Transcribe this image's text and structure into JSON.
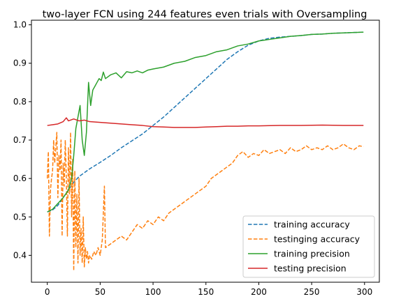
{
  "chart_data": {
    "type": "line",
    "title": "two-layer FCN using 244 features even trials with Oversampling",
    "xlabel": "",
    "ylabel": "",
    "xlim": [
      -15,
      314
    ],
    "ylim": [
      0.33,
      1.012
    ],
    "x_ticks": [
      0,
      50,
      100,
      150,
      200,
      250,
      300
    ],
    "y_ticks": [
      0.4,
      0.5,
      0.6,
      0.7,
      0.8,
      0.9,
      1.0
    ],
    "y_tick_labels": [
      "0.4",
      "0.5",
      "0.6",
      "0.7",
      "0.8",
      "0.9",
      "1.0"
    ],
    "grid": false,
    "legend_position": "lower-right",
    "series": [
      {
        "name": "training accuracy",
        "color": "#1f77b4",
        "dash": "dashed",
        "points": [
          [
            0,
            0.513
          ],
          [
            5,
            0.518
          ],
          [
            10,
            0.53
          ],
          [
            15,
            0.55
          ],
          [
            20,
            0.57
          ],
          [
            25,
            0.59
          ],
          [
            30,
            0.605
          ],
          [
            40,
            0.625
          ],
          [
            50,
            0.642
          ],
          [
            60,
            0.66
          ],
          [
            70,
            0.68
          ],
          [
            80,
            0.698
          ],
          [
            90,
            0.716
          ],
          [
            100,
            0.738
          ],
          [
            110,
            0.76
          ],
          [
            120,
            0.785
          ],
          [
            130,
            0.81
          ],
          [
            140,
            0.835
          ],
          [
            150,
            0.86
          ],
          [
            160,
            0.885
          ],
          [
            170,
            0.91
          ],
          [
            180,
            0.93
          ],
          [
            190,
            0.947
          ],
          [
            200,
            0.958
          ],
          [
            210,
            0.965
          ],
          [
            220,
            0.968
          ],
          [
            230,
            0.97
          ],
          [
            240,
            0.972
          ],
          [
            250,
            0.975
          ],
          [
            260,
            0.976
          ],
          [
            270,
            0.978
          ],
          [
            280,
            0.979
          ],
          [
            290,
            0.98
          ],
          [
            299,
            0.981
          ]
        ]
      },
      {
        "name": "testinging accuracy",
        "color": "#ff7f0e",
        "dash": "dashed",
        "points": [
          [
            0,
            0.6
          ],
          [
            1,
            0.67
          ],
          [
            2,
            0.45
          ],
          [
            3,
            0.57
          ],
          [
            4,
            0.6
          ],
          [
            5,
            0.62
          ],
          [
            6,
            0.7
          ],
          [
            7,
            0.64
          ],
          [
            8,
            0.68
          ],
          [
            9,
            0.72
          ],
          [
            10,
            0.55
          ],
          [
            11,
            0.66
          ],
          [
            12,
            0.62
          ],
          [
            13,
            0.7
          ],
          [
            14,
            0.45
          ],
          [
            15,
            0.64
          ],
          [
            16,
            0.58
          ],
          [
            17,
            0.7
          ],
          [
            18,
            0.6
          ],
          [
            19,
            0.45
          ],
          [
            20,
            0.68
          ],
          [
            21,
            0.56
          ],
          [
            22,
            0.72
          ],
          [
            23,
            0.5
          ],
          [
            24,
            0.65
          ],
          [
            25,
            0.36
          ],
          [
            26,
            0.62
          ],
          [
            27,
            0.42
          ],
          [
            28,
            0.56
          ],
          [
            29,
            0.38
          ],
          [
            30,
            0.6
          ],
          [
            31,
            0.4
          ],
          [
            32,
            0.47
          ],
          [
            33,
            0.38
          ],
          [
            34,
            0.5
          ],
          [
            35,
            0.37
          ],
          [
            36,
            0.42
          ],
          [
            37,
            0.39
          ],
          [
            38,
            0.41
          ],
          [
            39,
            0.38
          ],
          [
            40,
            0.4
          ],
          [
            42,
            0.39
          ],
          [
            44,
            0.41
          ],
          [
            46,
            0.4
          ],
          [
            48,
            0.42
          ],
          [
            50,
            0.4
          ],
          [
            52,
            0.44
          ],
          [
            54,
            0.58
          ],
          [
            55,
            0.42
          ],
          [
            60,
            0.43
          ],
          [
            65,
            0.44
          ],
          [
            70,
            0.45
          ],
          [
            75,
            0.44
          ],
          [
            80,
            0.46
          ],
          [
            85,
            0.48
          ],
          [
            90,
            0.47
          ],
          [
            95,
            0.49
          ],
          [
            100,
            0.48
          ],
          [
            105,
            0.5
          ],
          [
            110,
            0.49
          ],
          [
            115,
            0.51
          ],
          [
            120,
            0.52
          ],
          [
            125,
            0.53
          ],
          [
            130,
            0.54
          ],
          [
            135,
            0.55
          ],
          [
            140,
            0.56
          ],
          [
            145,
            0.57
          ],
          [
            150,
            0.58
          ],
          [
            155,
            0.6
          ],
          [
            160,
            0.61
          ],
          [
            165,
            0.62
          ],
          [
            170,
            0.63
          ],
          [
            175,
            0.64
          ],
          [
            180,
            0.66
          ],
          [
            185,
            0.67
          ],
          [
            190,
            0.655
          ],
          [
            195,
            0.665
          ],
          [
            200,
            0.66
          ],
          [
            205,
            0.675
          ],
          [
            210,
            0.665
          ],
          [
            215,
            0.67
          ],
          [
            220,
            0.675
          ],
          [
            225,
            0.665
          ],
          [
            230,
            0.68
          ],
          [
            235,
            0.67
          ],
          [
            240,
            0.675
          ],
          [
            245,
            0.685
          ],
          [
            250,
            0.675
          ],
          [
            255,
            0.68
          ],
          [
            260,
            0.675
          ],
          [
            265,
            0.685
          ],
          [
            270,
            0.675
          ],
          [
            275,
            0.68
          ],
          [
            280,
            0.69
          ],
          [
            285,
            0.68
          ],
          [
            290,
            0.675
          ],
          [
            295,
            0.685
          ],
          [
            299,
            0.683
          ]
        ]
      },
      {
        "name": "training precision",
        "color": "#2ca02c",
        "dash": "solid",
        "points": [
          [
            0,
            0.513
          ],
          [
            5,
            0.52
          ],
          [
            10,
            0.535
          ],
          [
            15,
            0.55
          ],
          [
            20,
            0.57
          ],
          [
            23,
            0.6
          ],
          [
            25,
            0.66
          ],
          [
            27,
            0.73
          ],
          [
            29,
            0.76
          ],
          [
            31,
            0.79
          ],
          [
            33,
            0.7
          ],
          [
            35,
            0.66
          ],
          [
            37,
            0.72
          ],
          [
            39,
            0.85
          ],
          [
            41,
            0.79
          ],
          [
            43,
            0.83
          ],
          [
            45,
            0.84
          ],
          [
            47,
            0.85
          ],
          [
            49,
            0.86
          ],
          [
            51,
            0.855
          ],
          [
            53,
            0.877
          ],
          [
            55,
            0.86
          ],
          [
            60,
            0.87
          ],
          [
            65,
            0.875
          ],
          [
            70,
            0.862
          ],
          [
            75,
            0.878
          ],
          [
            80,
            0.875
          ],
          [
            85,
            0.88
          ],
          [
            90,
            0.875
          ],
          [
            95,
            0.882
          ],
          [
            100,
            0.885
          ],
          [
            110,
            0.89
          ],
          [
            120,
            0.9
          ],
          [
            130,
            0.905
          ],
          [
            140,
            0.915
          ],
          [
            150,
            0.92
          ],
          [
            160,
            0.93
          ],
          [
            170,
            0.935
          ],
          [
            180,
            0.945
          ],
          [
            190,
            0.95
          ],
          [
            200,
            0.958
          ],
          [
            210,
            0.962
          ],
          [
            220,
            0.966
          ],
          [
            230,
            0.97
          ],
          [
            240,
            0.972
          ],
          [
            250,
            0.975
          ],
          [
            260,
            0.976
          ],
          [
            270,
            0.978
          ],
          [
            280,
            0.979
          ],
          [
            290,
            0.98
          ],
          [
            299,
            0.981
          ]
        ]
      },
      {
        "name": "testing precision",
        "color": "#d62728",
        "dash": "solid",
        "points": [
          [
            0,
            0.738
          ],
          [
            5,
            0.74
          ],
          [
            10,
            0.742
          ],
          [
            15,
            0.748
          ],
          [
            18,
            0.758
          ],
          [
            20,
            0.75
          ],
          [
            25,
            0.755
          ],
          [
            30,
            0.75
          ],
          [
            35,
            0.752
          ],
          [
            40,
            0.748
          ],
          [
            50,
            0.746
          ],
          [
            60,
            0.744
          ],
          [
            70,
            0.742
          ],
          [
            80,
            0.74
          ],
          [
            90,
            0.738
          ],
          [
            100,
            0.735
          ],
          [
            110,
            0.734
          ],
          [
            120,
            0.733
          ],
          [
            130,
            0.733
          ],
          [
            140,
            0.733
          ],
          [
            150,
            0.734
          ],
          [
            160,
            0.735
          ],
          [
            170,
            0.736
          ],
          [
            180,
            0.736
          ],
          [
            190,
            0.737
          ],
          [
            200,
            0.737
          ],
          [
            220,
            0.738
          ],
          [
            240,
            0.738
          ],
          [
            260,
            0.739
          ],
          [
            280,
            0.738
          ],
          [
            299,
            0.738
          ]
        ]
      }
    ]
  }
}
